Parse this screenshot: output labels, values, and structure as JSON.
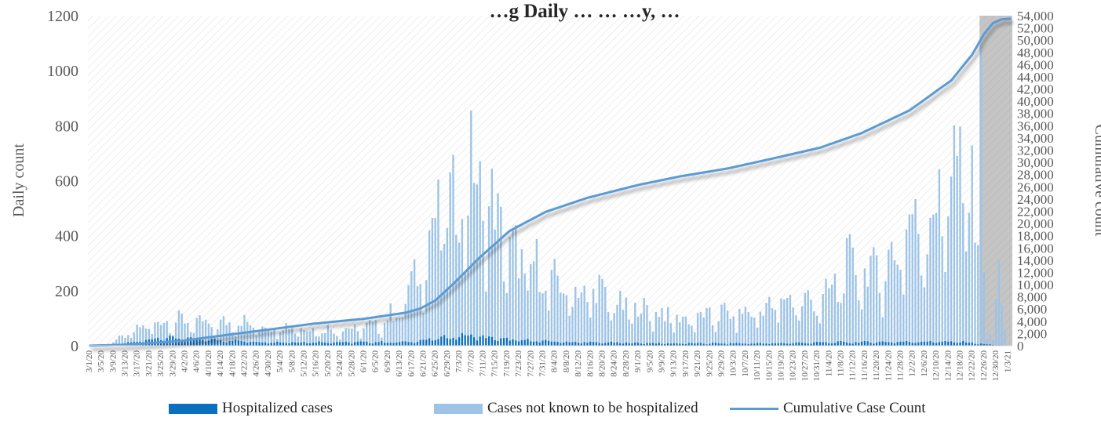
{
  "chart_data": {
    "type": "bar",
    "title": "…g Daily … … …y, …",
    "ylabel": "Daily count",
    "y2label": "Cumulative count",
    "ylim": [
      0,
      1200
    ],
    "yticks": [
      "0",
      "200",
      "400",
      "600",
      "800",
      "1000",
      "1200"
    ],
    "y2lim": [
      0,
      54000
    ],
    "y2ticks": [
      "0",
      "2,000",
      "4,000",
      "6,000",
      "8,000",
      "10,000",
      "12,000",
      "14,000",
      "16,000",
      "18,000",
      "20,000",
      "22,000",
      "24,000",
      "26,000",
      "28,000",
      "30,000",
      "32,000",
      "34,000",
      "36,000",
      "38,000",
      "40,000",
      "42,000",
      "44,000",
      "46,000",
      "48,000",
      "50,000",
      "52,000",
      "54,000"
    ],
    "x_tick_labels": [
      "3/1/20",
      "3/5/20",
      "3/9/20",
      "3/13/20",
      "3/17/20",
      "3/21/20",
      "3/25/20",
      "3/29/20",
      "4/2/20",
      "4/6/20",
      "4/10/20",
      "4/14/20",
      "4/18/20",
      "4/22/20",
      "4/26/20",
      "4/30/20",
      "5/4/20",
      "5/8/20",
      "5/12/20",
      "5/16/20",
      "5/20/20",
      "5/24/20",
      "5/28/20",
      "6/1/20",
      "6/5/20",
      "6/9/20",
      "6/13/20",
      "6/17/20",
      "6/21/20",
      "6/25/20",
      "6/29/20",
      "7/3/20",
      "7/7/20",
      "7/11/20",
      "7/15/20",
      "7/19/20",
      "7/23/20",
      "7/27/20",
      "7/31/20",
      "8/4/20",
      "8/8/20",
      "8/12/20",
      "8/16/20",
      "8/20/20",
      "8/24/20",
      "8/28/20",
      "9/1/20",
      "9/5/20",
      "9/9/20",
      "9/13/20",
      "9/17/20",
      "9/21/20",
      "9/25/20",
      "9/29/20",
      "10/3/20",
      "10/7/20",
      "10/11/20",
      "10/15/20",
      "10/19/20",
      "10/23/20",
      "10/27/20",
      "10/31/20",
      "11/4/20",
      "11/8/20",
      "11/12/20",
      "11/16/20",
      "11/20/20",
      "11/24/20",
      "11/28/20",
      "12/2/20",
      "12/6/20",
      "12/10/20",
      "12/14/20",
      "12/18/20",
      "12/22/20",
      "12/26/20",
      "12/30/20",
      "1/3/21"
    ],
    "shaded_region": {
      "from": "12/25/20",
      "to": "1/4/21"
    },
    "legend_position": "bottom",
    "series": [
      {
        "name": "Hospitalized cases",
        "kind": "bar",
        "color": "#0B6FBF",
        "stacked_base": true
      },
      {
        "name": "Cases not known to be hospitalized",
        "kind": "bar",
        "color": "#9DC3E6",
        "stacked_on": "Hospitalized cases"
      },
      {
        "name": "Cumulative Case Count",
        "kind": "line",
        "axis": "right",
        "color": "#5B9BD5"
      }
    ],
    "anchors": {
      "total_daily": [
        [
          "3/1/20",
          0
        ],
        [
          "3/8/20",
          8
        ],
        [
          "3/15/20",
          45
        ],
        [
          "3/22/20",
          75
        ],
        [
          "3/29/20",
          90
        ],
        [
          "4/5/20",
          80
        ],
        [
          "4/12/20",
          70
        ],
        [
          "4/19/20",
          85
        ],
        [
          "4/26/20",
          70
        ],
        [
          "5/3/20",
          65
        ],
        [
          "5/10/20",
          65
        ],
        [
          "5/17/20",
          55
        ],
        [
          "5/24/20",
          55
        ],
        [
          "5/31/20",
          60
        ],
        [
          "6/7/20",
          75
        ],
        [
          "6/12/20",
          120
        ],
        [
          "6/17/20",
          200
        ],
        [
          "6/21/20",
          300
        ],
        [
          "6/25/20",
          430
        ],
        [
          "6/28/20",
          520
        ],
        [
          "7/1/20",
          450
        ],
        [
          "7/4/20",
          540
        ],
        [
          "7/7/20",
          590
        ],
        [
          "7/11/20",
          520
        ],
        [
          "7/14/20",
          470
        ],
        [
          "7/18/20",
          380
        ],
        [
          "7/22/20",
          300
        ],
        [
          "7/26/20",
          290
        ],
        [
          "7/30/20",
          250
        ],
        [
          "8/5/20",
          210
        ],
        [
          "8/12/20",
          180
        ],
        [
          "8/19/20",
          190
        ],
        [
          "8/26/20",
          130
        ],
        [
          "9/2/20",
          130
        ],
        [
          "9/9/20",
          110
        ],
        [
          "9/16/20",
          90
        ],
        [
          "9/23/20",
          100
        ],
        [
          "9/30/20",
          110
        ],
        [
          "10/7/20",
          110
        ],
        [
          "10/14/20",
          130
        ],
        [
          "10/21/20",
          160
        ],
        [
          "10/28/20",
          150
        ],
        [
          "11/4/20",
          170
        ],
        [
          "11/8/20",
          260
        ],
        [
          "11/14/20",
          270
        ],
        [
          "11/20/20",
          250
        ],
        [
          "11/26/20",
          300
        ],
        [
          "11/30/20",
          420
        ],
        [
          "12/5/20",
          400
        ],
        [
          "12/9/20",
          460
        ],
        [
          "12/13/20",
          540
        ],
        [
          "12/17/20",
          620
        ],
        [
          "12/20/20",
          600
        ],
        [
          "12/24/20",
          380
        ],
        [
          "12/25/20",
          850
        ],
        [
          "12/27/20",
          50
        ],
        [
          "12/29/20",
          20
        ],
        [
          "12/31/20",
          250
        ],
        [
          "1/3/21",
          5
        ],
        [
          "1/4/21",
          0
        ]
      ],
      "hospitalized_daily": [
        [
          "3/1/20",
          0
        ],
        [
          "3/15/20",
          10
        ],
        [
          "3/25/20",
          28
        ],
        [
          "4/10/20",
          20
        ],
        [
          "5/1/20",
          12
        ],
        [
          "6/15/20",
          12
        ],
        [
          "7/5/20",
          35
        ],
        [
          "7/20/20",
          20
        ],
        [
          "8/10/20",
          12
        ],
        [
          "9/10/20",
          8
        ],
        [
          "10/15/20",
          8
        ],
        [
          "11/10/20",
          12
        ],
        [
          "12/10/20",
          14
        ],
        [
          "12/20/20",
          12
        ],
        [
          "12/26/20",
          5
        ],
        [
          "1/4/21",
          0
        ]
      ],
      "cumulative": [
        [
          "3/1/20",
          0
        ],
        [
          "3/15/20",
          200
        ],
        [
          "4/1/20",
          800
        ],
        [
          "4/15/20",
          1700
        ],
        [
          "5/1/20",
          2700
        ],
        [
          "5/15/20",
          3600
        ],
        [
          "6/1/20",
          4400
        ],
        [
          "6/15/20",
          5400
        ],
        [
          "6/20/20",
          6100
        ],
        [
          "6/25/20",
          7400
        ],
        [
          "7/1/20",
          10100
        ],
        [
          "7/10/20",
          14500
        ],
        [
          "7/20/20",
          18800
        ],
        [
          "8/1/20",
          21900
        ],
        [
          "8/15/20",
          24200
        ],
        [
          "9/1/20",
          26300
        ],
        [
          "9/15/20",
          27700
        ],
        [
          "10/1/20",
          29000
        ],
        [
          "10/15/20",
          30500
        ],
        [
          "11/1/20",
          32400
        ],
        [
          "11/15/20",
          34800
        ],
        [
          "12/1/20",
          38500
        ],
        [
          "12/15/20",
          43400
        ],
        [
          "12/22/20",
          47600
        ],
        [
          "12/26/20",
          51000
        ],
        [
          "12/29/20",
          52800
        ],
        [
          "1/1/21",
          53400
        ],
        [
          "1/4/21",
          53500
        ]
      ]
    }
  }
}
